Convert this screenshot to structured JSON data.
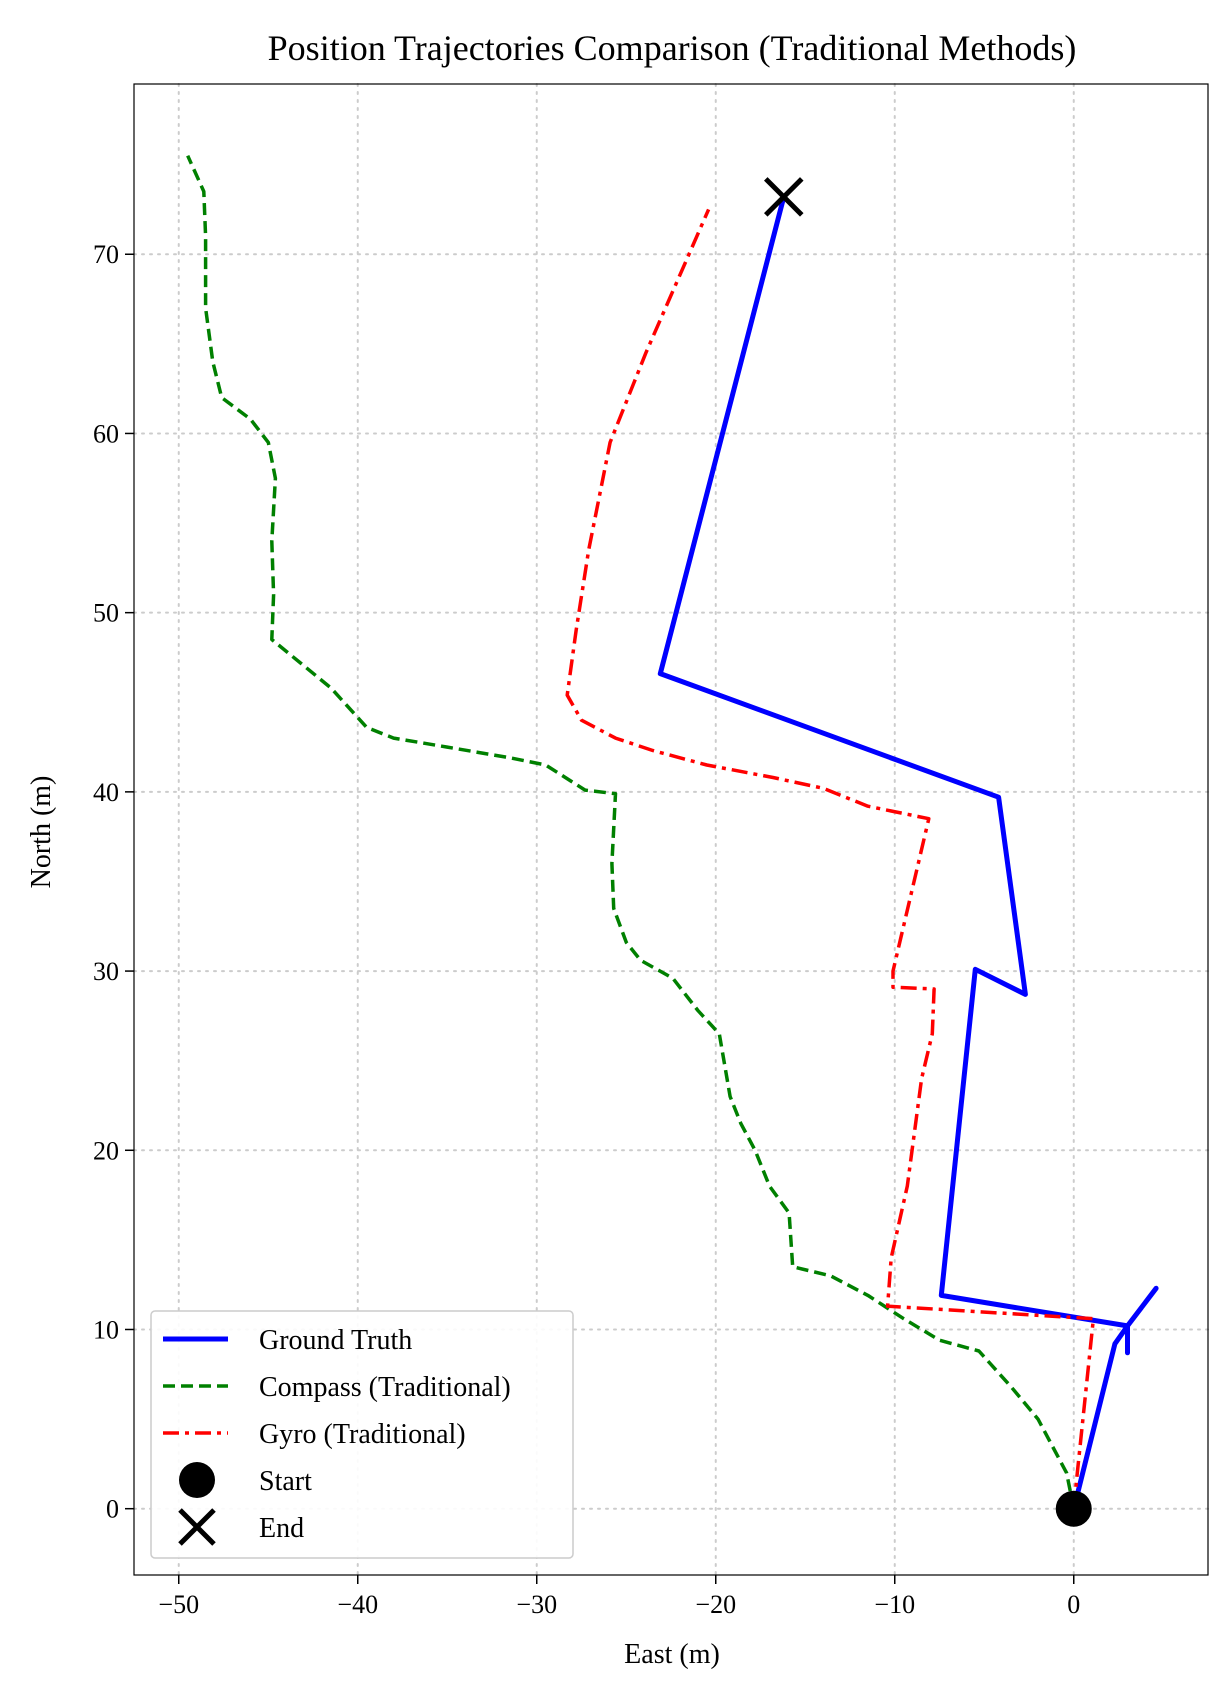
{
  "chart_data": {
    "type": "line",
    "title": "Position Trajectories Comparison (Traditional Methods)",
    "xlabel": "East (m)",
    "ylabel": "North (m)",
    "xlim": [
      -52.5,
      7.5
    ],
    "ylim": [
      -3.7,
      79.5
    ],
    "xticks": [
      -50,
      -40,
      -30,
      -20,
      -10,
      0
    ],
    "xtick_labels": [
      "−50",
      "−40",
      "−30",
      "−20",
      "−10",
      "0"
    ],
    "yticks": [
      0,
      10,
      20,
      30,
      40,
      50,
      60,
      70
    ],
    "ytick_labels": [
      "0",
      "10",
      "20",
      "30",
      "40",
      "50",
      "60",
      "70"
    ],
    "grid": true,
    "legend_position": "lower-left",
    "series": [
      {
        "name": "Ground Truth",
        "color": "#0000ff",
        "style": "solid",
        "points": [
          [
            0,
            0
          ],
          [
            2.3,
            9.2
          ],
          [
            3,
            10.2
          ],
          [
            4.6,
            12.3
          ],
          [
            3,
            10.2
          ],
          [
            3,
            8.7
          ],
          [
            3,
            10.2
          ],
          [
            -7.4,
            11.9
          ],
          [
            -5.5,
            30.1
          ],
          [
            -2.7,
            28.7
          ],
          [
            -4.2,
            39.7
          ],
          [
            -23.1,
            46.6
          ],
          [
            -16.2,
            73.2
          ]
        ]
      },
      {
        "name": "Compass (Traditional)",
        "color": "#008000",
        "style": "dashed",
        "points": [
          [
            0,
            0
          ],
          [
            -0.4,
            2
          ],
          [
            -1.2,
            3.5
          ],
          [
            -2,
            5
          ],
          [
            -3.5,
            6.8
          ],
          [
            -5.3,
            8.8
          ],
          [
            -7.5,
            9.4
          ],
          [
            -9.5,
            10.6
          ],
          [
            -11.5,
            11.9
          ],
          [
            -13.6,
            13
          ],
          [
            -15.7,
            13.5
          ],
          [
            -15.9,
            16.5
          ],
          [
            -17,
            18
          ],
          [
            -17.8,
            20
          ],
          [
            -18.6,
            21.5
          ],
          [
            -19.2,
            23
          ],
          [
            -19.8,
            26.5
          ],
          [
            -21,
            27.8
          ],
          [
            -22.4,
            29.6
          ],
          [
            -24.2,
            30.6
          ],
          [
            -25,
            31.6
          ],
          [
            -25.7,
            33.5
          ],
          [
            -25.8,
            36
          ],
          [
            -25.6,
            39.9
          ],
          [
            -27.3,
            40.1
          ],
          [
            -29.5,
            41.5
          ],
          [
            -31.5,
            41.9
          ],
          [
            -35,
            42.5
          ],
          [
            -38,
            43
          ],
          [
            -39.5,
            43.6
          ],
          [
            -41.5,
            45.8
          ],
          [
            -44.8,
            48.5
          ],
          [
            -44.7,
            51
          ],
          [
            -44.8,
            54
          ],
          [
            -44.6,
            57.5
          ],
          [
            -45,
            59.5
          ],
          [
            -46,
            60.8
          ],
          [
            -47.6,
            62
          ],
          [
            -48.1,
            64
          ],
          [
            -48.5,
            67
          ],
          [
            -48.5,
            71
          ],
          [
            -48.6,
            73.5
          ],
          [
            -49.5,
            75.5
          ]
        ]
      },
      {
        "name": "Gyro (Traditional)",
        "color": "#ff0000",
        "style": "dashdot",
        "points": [
          [
            0,
            0
          ],
          [
            0.2,
            2
          ],
          [
            1.1,
            10.6
          ],
          [
            -10.4,
            11.3
          ],
          [
            -10.2,
            14
          ],
          [
            -9.3,
            18
          ],
          [
            -8.5,
            24
          ],
          [
            -7.9,
            26.5
          ],
          [
            -7.8,
            29
          ],
          [
            -10.1,
            29.1
          ],
          [
            -10.1,
            30
          ],
          [
            -8.1,
            38.5
          ],
          [
            -11.5,
            39.2
          ],
          [
            -14,
            40.2
          ],
          [
            -16.8,
            40.8
          ],
          [
            -20.5,
            41.5
          ],
          [
            -23.5,
            42.3
          ],
          [
            -25.6,
            43
          ],
          [
            -27.5,
            44
          ],
          [
            -28.3,
            45.4
          ],
          [
            -27.8,
            49
          ],
          [
            -27.1,
            53.5
          ],
          [
            -25.9,
            59.5
          ],
          [
            -23.9,
            64.5
          ],
          [
            -20.4,
            72.5
          ]
        ]
      }
    ],
    "markers": [
      {
        "name": "Start",
        "symbol": "circle",
        "x": 0,
        "y": 0,
        "color": "#000000"
      },
      {
        "name": "End",
        "symbol": "x",
        "x": -16.2,
        "y": 73.2,
        "color": "#000000"
      }
    ]
  }
}
